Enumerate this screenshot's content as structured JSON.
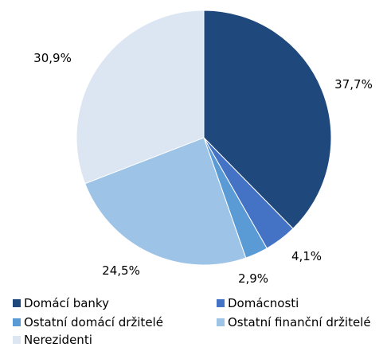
{
  "chart_data": {
    "type": "pie",
    "categories": [
      "Domácí banky",
      "Domácnosti",
      "Ostatní domácí držitelé",
      "Ostatní finanční držitelé",
      "Nerezidenti"
    ],
    "values": [
      37.7,
      4.1,
      2.9,
      24.5,
      30.9
    ],
    "data_labels": [
      "37,7%",
      "4,1%",
      "2,9%",
      "24,5%",
      "30,9%"
    ],
    "colors": [
      "#1f497d",
      "#4472c4",
      "#5b9bd5",
      "#9dc3e6",
      "#dce6f2"
    ],
    "title": "",
    "legend_position": "bottom",
    "start_angle": "12 o'clock",
    "direction": "clockwise"
  },
  "legend": [
    {
      "label": "Domácí banky",
      "color": "#1f497d"
    },
    {
      "label": "Domácnosti",
      "color": "#4472c4"
    },
    {
      "label": "Ostatní domácí držitelé",
      "color": "#5b9bd5"
    },
    {
      "label": "Ostatní finanční držitelé",
      "color": "#9dc3e6"
    },
    {
      "label": "Nerezidenti",
      "color": "#dce6f2"
    }
  ]
}
